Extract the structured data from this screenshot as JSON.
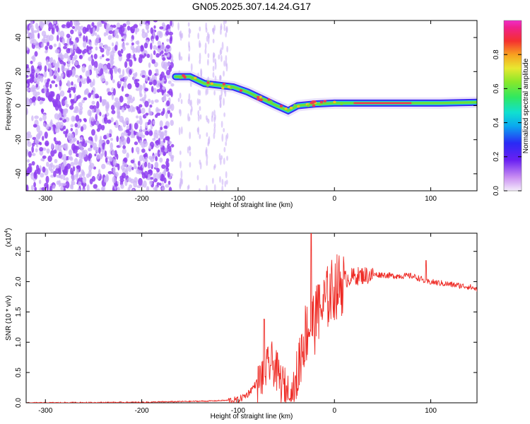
{
  "figure": {
    "title": "GN05.2025.307.14.24.G17"
  },
  "chart_data": [
    {
      "type": "heatmap",
      "xlabel": "Height of straight line (km)",
      "ylabel": "Frequency (Hz)",
      "xlim": [
        -320,
        148
      ],
      "ylim": [
        -50,
        50
      ],
      "x_ticks": [
        -300,
        -200,
        -100,
        0,
        100
      ],
      "y_ticks": [
        -40,
        -20,
        0,
        20,
        40
      ],
      "colorbar": {
        "label": "Normalized spectral amplitude",
        "range": [
          0,
          1
        ],
        "ticks": [
          "0.0",
          "0.2",
          "0.4",
          "0.6",
          "0.8"
        ],
        "tick_values": [
          0.0,
          0.2,
          0.4,
          0.6,
          0.8
        ]
      },
      "colors": {
        "noise": "#8f3ff0",
        "noise_light": "#cdb4f7",
        "band_edge": "#3a2cf2",
        "band_mid": "#18d8e0",
        "band_core": "#6ddc3a",
        "band_peak": "#f03a50"
      },
      "ridge": [
        {
          "x": -165,
          "y": 17
        },
        {
          "x": -150,
          "y": 17
        },
        {
          "x": -135,
          "y": 13
        },
        {
          "x": -120,
          "y": 12
        },
        {
          "x": -105,
          "y": 11
        },
        {
          "x": -90,
          "y": 8
        },
        {
          "x": -75,
          "y": 4
        },
        {
          "x": -60,
          "y": 0
        },
        {
          "x": -48,
          "y": -3
        },
        {
          "x": -38,
          "y": 0
        },
        {
          "x": -20,
          "y": 1
        },
        {
          "x": 0,
          "y": 1.5
        },
        {
          "x": 20,
          "y": 1.5
        },
        {
          "x": 50,
          "y": 1.5
        },
        {
          "x": 80,
          "y": 1.5
        },
        {
          "x": 110,
          "y": 1.5
        },
        {
          "x": 148,
          "y": 2
        }
      ]
    },
    {
      "type": "line",
      "xlabel": "Height of straight line (km)",
      "ylabel": "SNR (10 * v/v)",
      "scale_label": "(x10",
      "scale_exponent": "4",
      "xlim": [
        -320,
        148
      ],
      "ylim": [
        0,
        2.8
      ],
      "x_ticks": [
        -300,
        -200,
        -100,
        0,
        100
      ],
      "y_ticks": [
        "0.0",
        "0.5",
        "1.0",
        "1.5",
        "2.0",
        "2.5"
      ],
      "y_tick_values": [
        0.0,
        0.5,
        1.0,
        1.5,
        2.0,
        2.5
      ],
      "color": "#ee2a24",
      "series": [
        {
          "x": [
            -320,
            -200,
            -130,
            -100,
            -90,
            -80,
            -70,
            -65,
            -60,
            -55,
            -50,
            -45,
            -40,
            -35,
            -30,
            -25,
            -20,
            -15,
            -10,
            -5,
            0,
            10,
            20,
            30,
            40,
            50,
            60,
            70,
            80,
            90,
            95,
            100,
            110,
            120,
            130,
            140,
            148
          ],
          "y": [
            0.0,
            0.01,
            0.03,
            0.05,
            0.15,
            0.35,
            0.6,
            0.7,
            0.55,
            0.35,
            0.25,
            0.1,
            0.3,
            0.9,
            1.2,
            1.35,
            1.4,
            1.55,
            1.7,
            1.85,
            1.95,
            2.05,
            2.1,
            2.12,
            2.12,
            2.12,
            2.1,
            2.1,
            2.1,
            2.05,
            2.0,
            2.0,
            1.98,
            1.96,
            1.94,
            1.92,
            1.88
          ]
        }
      ],
      "peaks": [
        {
          "x": -73,
          "y": 1.38
        },
        {
          "x": -24,
          "y": 2.8
        },
        {
          "x": -17,
          "y": 1.95
        },
        {
          "x": 95,
          "y": 2.35
        }
      ]
    }
  ]
}
